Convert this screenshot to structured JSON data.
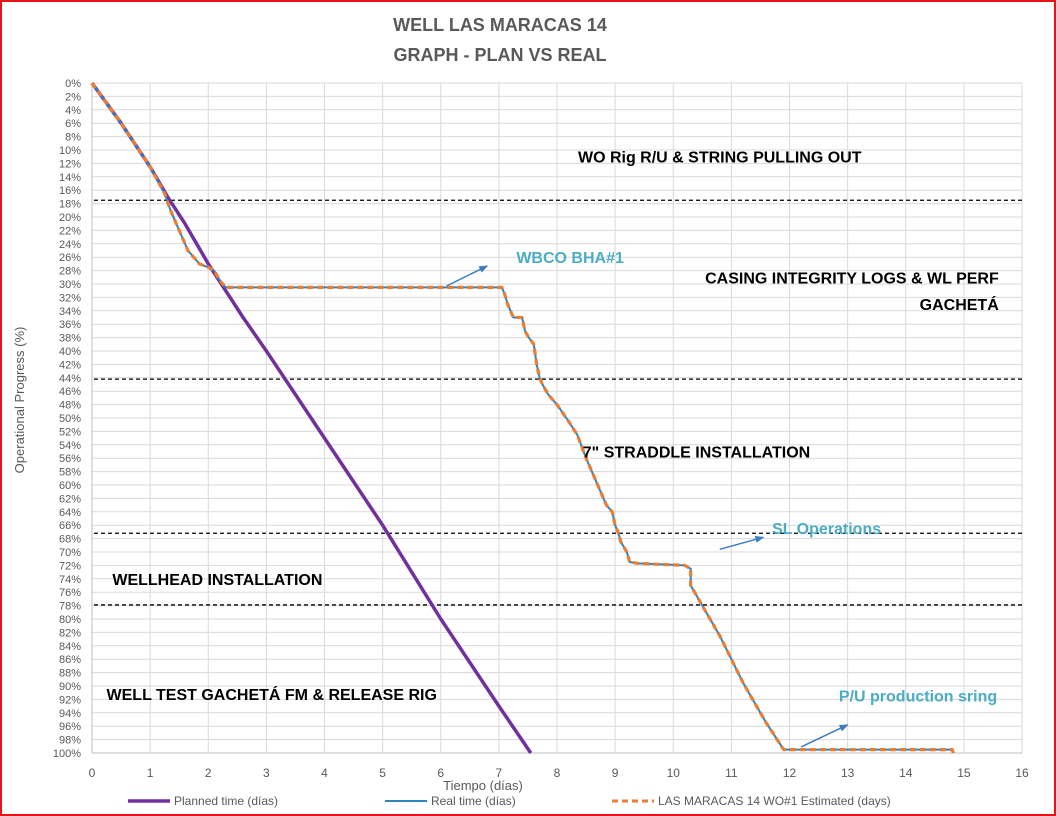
{
  "chart_data": {
    "type": "line",
    "title": [
      "WELL LAS MARACAS 14",
      "GRAPH  - PLAN VS REAL"
    ],
    "xlabel": "Tiempo (días)",
    "ylabel": "Operational Progress (%)",
    "xlim": [
      0,
      16
    ],
    "xticks": [
      "0",
      "1",
      "2",
      "3",
      "4",
      "5",
      "6",
      "7",
      "8",
      "9",
      "10",
      "11",
      "12",
      "13",
      "14",
      "15",
      "16"
    ],
    "ylim": [
      0,
      100
    ],
    "y_inverted": true,
    "yticks": [
      "0%",
      "2%",
      "4%",
      "6%",
      "8%",
      "10%",
      "12%",
      "14%",
      "16%",
      "18%",
      "20%",
      "22%",
      "24%",
      "26%",
      "28%",
      "30%",
      "32%",
      "34%",
      "36%",
      "38%",
      "40%",
      "42%",
      "44%",
      "46%",
      "48%",
      "50%",
      "52%",
      "54%",
      "56%",
      "58%",
      "60%",
      "62%",
      "64%",
      "66%",
      "68%",
      "70%",
      "72%",
      "74%",
      "76%",
      "78%",
      "80%",
      "82%",
      "84%",
      "86%",
      "88%",
      "90%",
      "92%",
      "94%",
      "96%",
      "98%",
      "100%"
    ],
    "grid": true,
    "legend_position": "bottom",
    "series": [
      {
        "name": "Planned time (días)",
        "color": "#7030a0",
        "style": "solid",
        "points": [
          [
            0,
            0
          ],
          [
            0.5,
            6
          ],
          [
            1,
            12.5
          ],
          [
            1.3,
            17
          ],
          [
            1.6,
            21
          ],
          [
            2,
            27
          ],
          [
            2.3,
            31
          ],
          [
            2.6,
            35
          ],
          [
            3,
            40
          ],
          [
            4,
            53
          ],
          [
            5,
            66
          ],
          [
            6,
            80
          ],
          [
            7,
            93
          ],
          [
            7.55,
            100
          ]
        ]
      },
      {
        "name": "Real time (días)",
        "color": "#2e86c1",
        "style": "solid",
        "points": [
          [
            0,
            0
          ],
          [
            0.5,
            6
          ],
          [
            1,
            12.5
          ],
          [
            1.25,
            16.5
          ],
          [
            1.35,
            19
          ],
          [
            1.45,
            21
          ],
          [
            1.55,
            23
          ],
          [
            1.65,
            25
          ],
          [
            1.7,
            25.5
          ],
          [
            1.85,
            27
          ],
          [
            2,
            27.5
          ],
          [
            2.1,
            28
          ],
          [
            2.2,
            29.5
          ],
          [
            2.3,
            30.5
          ],
          [
            7.05,
            30.5
          ],
          [
            7.1,
            31.5
          ],
          [
            7.15,
            33
          ],
          [
            7.25,
            35
          ],
          [
            7.4,
            35
          ],
          [
            7.45,
            37
          ],
          [
            7.5,
            37.8
          ],
          [
            7.6,
            39
          ],
          [
            7.65,
            42
          ],
          [
            7.7,
            44
          ],
          [
            7.75,
            45
          ],
          [
            7.85,
            46.5
          ],
          [
            8,
            48
          ],
          [
            8.2,
            50.5
          ],
          [
            8.35,
            52.5
          ],
          [
            8.5,
            56
          ],
          [
            8.55,
            57
          ],
          [
            8.65,
            59
          ],
          [
            8.75,
            61
          ],
          [
            8.85,
            63
          ],
          [
            8.95,
            64
          ],
          [
            9,
            66
          ],
          [
            9.05,
            67
          ],
          [
            9.1,
            68.5
          ],
          [
            9.2,
            70
          ],
          [
            9.25,
            71.5
          ],
          [
            9.4,
            71.7
          ],
          [
            10.2,
            72
          ],
          [
            10.3,
            72.5
          ],
          [
            10.3,
            75
          ],
          [
            10.4,
            76.5
          ],
          [
            10.6,
            79.5
          ],
          [
            10.8,
            82.5
          ],
          [
            11,
            86
          ],
          [
            11.2,
            89.5
          ],
          [
            11.4,
            92.5
          ],
          [
            11.6,
            95.5
          ],
          [
            11.9,
            99.5
          ],
          [
            13,
            99.5
          ],
          [
            14.8,
            99.5
          ],
          [
            14.82,
            100
          ]
        ]
      },
      {
        "name": "LAS MARACAS 14 WO#1 Estimated (days)",
        "color": "#ed7d31",
        "style": "dashed",
        "points": [
          [
            0,
            0
          ],
          [
            0.5,
            6
          ],
          [
            1,
            12.5
          ],
          [
            1.25,
            16.5
          ],
          [
            1.35,
            19
          ],
          [
            1.45,
            21
          ],
          [
            1.55,
            23
          ],
          [
            1.65,
            25
          ],
          [
            1.7,
            25.5
          ],
          [
            1.85,
            27
          ],
          [
            2,
            27.5
          ],
          [
            2.1,
            28
          ],
          [
            2.2,
            29.5
          ],
          [
            2.3,
            30.5
          ],
          [
            7.05,
            30.5
          ],
          [
            7.1,
            31.5
          ],
          [
            7.15,
            33
          ],
          [
            7.25,
            35
          ],
          [
            7.4,
            35
          ],
          [
            7.45,
            37
          ],
          [
            7.5,
            37.8
          ],
          [
            7.6,
            39
          ],
          [
            7.65,
            42
          ],
          [
            7.7,
            44
          ],
          [
            7.75,
            45
          ],
          [
            7.85,
            46.5
          ],
          [
            8,
            48
          ],
          [
            8.2,
            50.5
          ],
          [
            8.35,
            52.5
          ],
          [
            8.5,
            56
          ],
          [
            8.55,
            57
          ],
          [
            8.65,
            59
          ],
          [
            8.75,
            61
          ],
          [
            8.85,
            63
          ],
          [
            8.95,
            64
          ],
          [
            9,
            66
          ],
          [
            9.05,
            67
          ],
          [
            9.1,
            68.5
          ],
          [
            9.2,
            70
          ],
          [
            9.25,
            71.5
          ],
          [
            9.4,
            71.7
          ],
          [
            10.2,
            72
          ],
          [
            10.3,
            72.5
          ],
          [
            10.3,
            75
          ],
          [
            10.4,
            76.5
          ],
          [
            10.6,
            79.5
          ],
          [
            10.8,
            82.5
          ],
          [
            11,
            86
          ],
          [
            11.2,
            89.5
          ],
          [
            11.4,
            92.5
          ],
          [
            11.6,
            95.5
          ],
          [
            11.9,
            99.5
          ],
          [
            13,
            99.5
          ],
          [
            14.8,
            99.5
          ],
          [
            14.82,
            100
          ]
        ]
      }
    ],
    "phase_lines": [
      17.5,
      44.2,
      67.2,
      77.9
    ],
    "phase_labels": [
      {
        "text": "WO Rig R/U & STRING PULLING OUT",
        "x": 10.8,
        "y": 11,
        "anchor": "middle",
        "color": "#000000"
      },
      {
        "text": "CASING INTEGRITY LOGS & WL PERF",
        "x": 15.6,
        "y": 29,
        "anchor": "end",
        "color": "#000000"
      },
      {
        "text": "GACHETÁ",
        "x": 15.6,
        "y": 33,
        "anchor": "end",
        "color": "#000000"
      },
      {
        "text": "7\" STRADDLE INSTALLATION",
        "x": 10.4,
        "y": 55,
        "anchor": "middle",
        "color": "#000000"
      },
      {
        "text": "WELLHEAD INSTALLATION",
        "x": 0.35,
        "y": 74,
        "anchor": "start",
        "color": "#000000"
      },
      {
        "text": "WELL TEST GACHETÁ FM  & RELEASE RIG",
        "x": 0.25,
        "y": 91.2,
        "anchor": "start",
        "color": "#000000"
      }
    ],
    "callouts": [
      {
        "text": "WBCO BHA#1",
        "x": 7.3,
        "y": 26,
        "anchor": "start",
        "color": "#4bacc6",
        "arrow_from": [
          6.1,
          30.3
        ],
        "arrow_to": [
          6.8,
          27.3
        ]
      },
      {
        "text": "SL Operations",
        "x": 11.7,
        "y": 66.4,
        "anchor": "start",
        "color": "#4bacc6",
        "arrow_from": [
          10.8,
          69.6
        ],
        "arrow_to": [
          11.55,
          67.8
        ]
      },
      {
        "text": "P/U production sring",
        "x": 12.85,
        "y": 91.4,
        "anchor": "start",
        "color": "#4bacc6",
        "arrow_from": [
          12.2,
          99.1
        ],
        "arrow_to": [
          13.0,
          95.8
        ]
      }
    ]
  }
}
